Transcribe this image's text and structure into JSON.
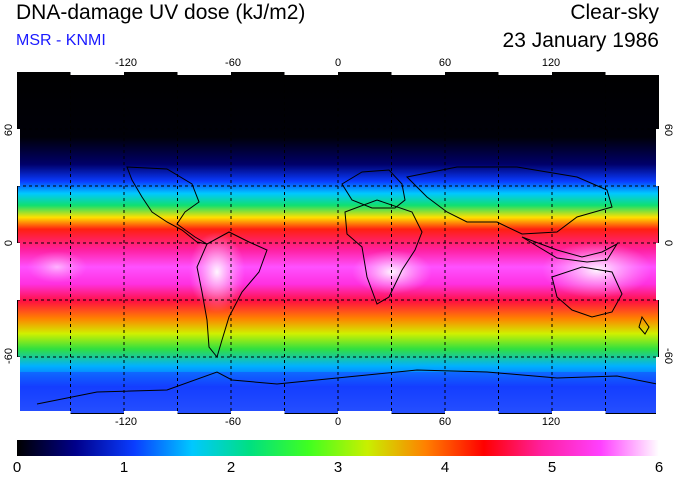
{
  "header": {
    "title": "DNA-damage UV dose (kJ/m2)",
    "subtitle": "MSR - KNMI",
    "sky_condition": "Clear-sky",
    "date": "23 January 1986"
  },
  "map": {
    "lon_ticks": [
      "-120",
      "-60",
      "0",
      "60",
      "120"
    ],
    "lat_ticks": [
      "60",
      "0",
      "-60"
    ],
    "grid_spacing_deg": 30,
    "lon_range": [
      -180,
      180
    ],
    "lat_range": [
      -90,
      90
    ]
  },
  "colorbar": {
    "labels": [
      "0",
      "1",
      "2",
      "3",
      "4",
      "5",
      "6"
    ],
    "min": 0,
    "max": 6,
    "colors": [
      "#000000",
      "#00008a",
      "#0a3cff",
      "#00c8ff",
      "#00e080",
      "#40ff20",
      "#c8f000",
      "#ff8000",
      "#ff0000",
      "#ff20a0",
      "#ff40ff",
      "#ffffff"
    ]
  }
}
